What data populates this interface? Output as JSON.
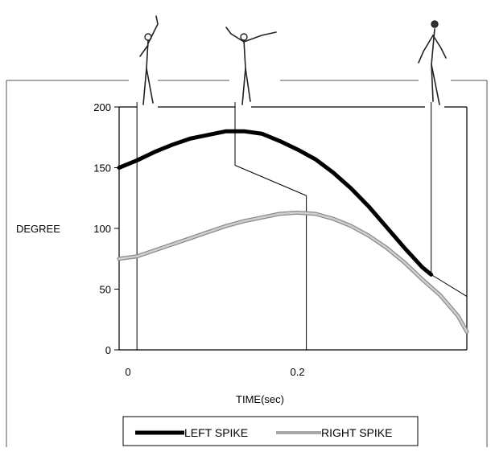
{
  "chart_data": {
    "type": "line",
    "xlabel": "TIME(sec)",
    "ylabel": "DEGREE",
    "xlim": [
      0,
      0.39
    ],
    "ylim": [
      0,
      200
    ],
    "x_ticks": [
      {
        "value": 0,
        "label": "0"
      },
      {
        "value": 0.2,
        "label": "0.2"
      }
    ],
    "y_ticks": [
      {
        "value": 0,
        "label": "0"
      },
      {
        "value": 50,
        "label": "50"
      },
      {
        "value": 100,
        "label": "100"
      },
      {
        "value": 150,
        "label": "150"
      },
      {
        "value": 200,
        "label": "200"
      }
    ],
    "grid": false,
    "legend_position": "bottom",
    "series": [
      {
        "name": "LEFT SPIKE",
        "color": "#000000",
        "style": "thick-solid",
        "x": [
          0,
          0.02,
          0.04,
          0.06,
          0.08,
          0.1,
          0.12,
          0.14,
          0.16,
          0.18,
          0.2,
          0.22,
          0.24,
          0.26,
          0.28,
          0.3,
          0.32,
          0.34,
          0.35
        ],
        "y": [
          150,
          156,
          163,
          169,
          174,
          177,
          180,
          180,
          178,
          172,
          165,
          157,
          146,
          133,
          118,
          101,
          84,
          68,
          62
        ]
      },
      {
        "name": "RIGHT SPIKE",
        "color": "#a8a8a8",
        "style": "thick-light",
        "x": [
          0,
          0.02,
          0.04,
          0.06,
          0.08,
          0.1,
          0.12,
          0.14,
          0.16,
          0.18,
          0.2,
          0.22,
          0.24,
          0.26,
          0.28,
          0.3,
          0.32,
          0.34,
          0.36,
          0.38,
          0.39
        ],
        "y": [
          75,
          77,
          82,
          87,
          92,
          97,
          102,
          106,
          109,
          112,
          113,
          112,
          108,
          102,
          94,
          84,
          72,
          58,
          45,
          28,
          15
        ]
      }
    ],
    "annotations": {
      "phase_lines_x": [
        0.02,
        0.13,
        0.21,
        0.35,
        0.39
      ],
      "phase_path": [
        {
          "x": 0.13,
          "y": 152
        },
        {
          "x": 0.21,
          "y": 127
        }
      ],
      "end_path": [
        {
          "x": 0.35,
          "y": 62
        },
        {
          "x": 0.39,
          "y": 44
        }
      ],
      "figures_x": [
        0.02,
        0.13,
        0.35
      ]
    }
  }
}
